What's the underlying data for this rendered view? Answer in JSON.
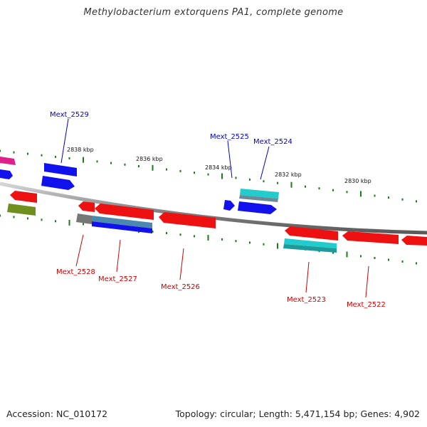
{
  "title": "Methylobacterium extorquens PA1, complete genome",
  "accession": "Accession: NC_010172",
  "summary": "Topology: circular; Length: 5,471,154 bp; Genes: 4,902",
  "scale_labels": [
    "2838 kbp",
    "2836 kbp",
    "2834 kbp",
    "2832 kbp",
    "2830 kbp"
  ],
  "gene_labels": {
    "forward": [
      "Mext_2529",
      "Mext_2525",
      "Mext_2524"
    ],
    "reverse": [
      "Mext_2528",
      "Mext_2527",
      "Mext_2526",
      "Mext_2523",
      "Mext_2522"
    ]
  },
  "colors": {
    "forward_label": "#0000cc",
    "reverse_label": "#cc0000",
    "backbone": "#8a8a8a",
    "tick": "#1e7a1e",
    "cds_red": "#ee1111",
    "cds_blue": "#1111ee",
    "cds_cyan": "#22cccc",
    "cds_gray": "#777777",
    "cds_magenta": "#e0208a",
    "cds_olive": "#6f8f1f"
  }
}
